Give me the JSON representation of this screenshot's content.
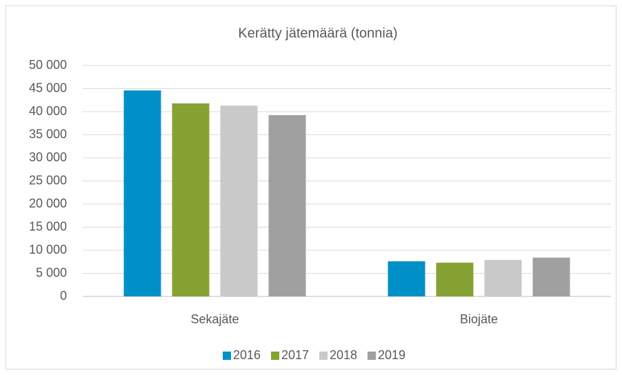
{
  "chart_data": {
    "type": "bar",
    "title": "Kerätty jätemäärä (tonnia)",
    "categories": [
      "Sekajäte",
      "Biojäte"
    ],
    "series": [
      {
        "name": "2016",
        "color": "#0090c8",
        "values": [
          44600,
          7600
        ]
      },
      {
        "name": "2017",
        "color": "#86a232",
        "values": [
          41800,
          7300
        ]
      },
      {
        "name": "2018",
        "color": "#c9c9c9",
        "values": [
          41300,
          7900
        ]
      },
      {
        "name": "2019",
        "color": "#a0a0a0",
        "values": [
          39250,
          8400
        ]
      }
    ],
    "ylim": [
      0,
      50000
    ],
    "yticks": [
      0,
      {
        "value": 5000,
        "label": "5 000"
      },
      {
        "value": 10000,
        "label": "10 000"
      },
      {
        "value": 15000,
        "label": "15 000"
      },
      {
        "value": 20000,
        "label": "20 000"
      },
      {
        "value": 25000,
        "label": "25 000"
      },
      {
        "value": 30000,
        "label": "30 000"
      },
      {
        "value": 35000,
        "label": "35 000"
      },
      {
        "value": 40000,
        "label": "40 000"
      },
      {
        "value": 45000,
        "label": "45 000"
      },
      {
        "value": 50000,
        "label": "50 000"
      }
    ],
    "grid": true,
    "legend": "bottom"
  }
}
